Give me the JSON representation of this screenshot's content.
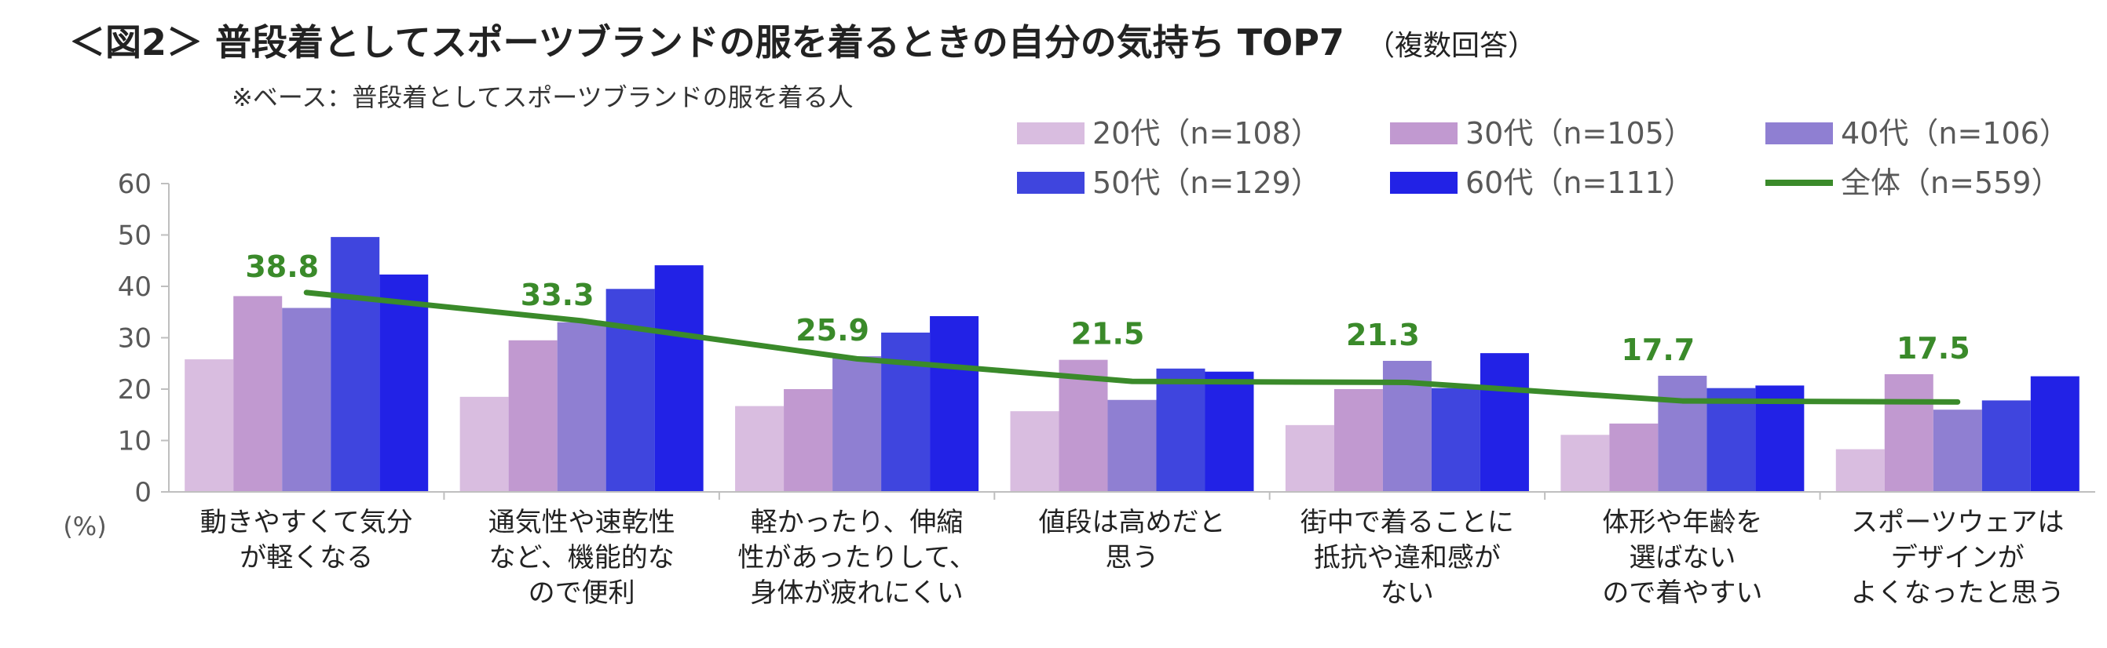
{
  "chart_data": {
    "type": "bar",
    "title": "＜図2＞ 普段着としてスポーツブランドの服を着るときの自分の気持ち TOP7",
    "title_note": "（複数回答）",
    "subtitle": "※ベース：普段着としてスポーツブランドの服を着る人",
    "ylabel": "(%)",
    "ylim": [
      0,
      60
    ],
    "yticks": [
      "0",
      "10",
      "20",
      "30",
      "40",
      "50",
      "60"
    ],
    "grid": false,
    "legend_position": "top-right",
    "categories": [
      [
        "動きやすくて気分",
        "が軽くなる"
      ],
      [
        "通気性や速乾性",
        "など、機能的な",
        "ので便利"
      ],
      [
        "軽かったり、伸縮",
        "性があったりして、",
        "身体が疲れにくい"
      ],
      [
        "値段は高めだと",
        "思う"
      ],
      [
        "街中で着ることに",
        "抵抗や違和感が",
        "ない"
      ],
      [
        "体形や年齢を",
        "選ばない",
        "ので着やすい"
      ],
      [
        "スポーツウェアは",
        "デザインが",
        "よくなったと思う"
      ]
    ],
    "series": [
      {
        "name": "20代（n=108）",
        "color": "#d9bde0",
        "values": [
          25.8,
          18.5,
          16.7,
          15.7,
          13.0,
          11.1,
          8.3
        ]
      },
      {
        "name": "30代（n=105）",
        "color": "#c199d0",
        "values": [
          38.1,
          29.5,
          20.0,
          25.7,
          20.0,
          13.3,
          22.9
        ]
      },
      {
        "name": "40代（n=106）",
        "color": "#8f7fd2",
        "values": [
          35.8,
          33.0,
          26.4,
          17.9,
          25.5,
          22.6,
          16.0
        ]
      },
      {
        "name": "50代（n=129）",
        "color": "#3f45de",
        "values": [
          49.6,
          39.5,
          31.0,
          24.0,
          20.2,
          20.2,
          17.8
        ]
      },
      {
        "name": "60代（n=111）",
        "color": "#2222e6",
        "values": [
          42.3,
          44.1,
          34.2,
          23.4,
          27.0,
          20.7,
          22.5
        ]
      }
    ],
    "line_series": {
      "name": "全体（n=559）",
      "color": "#3a8a2a",
      "values": [
        38.8,
        33.3,
        25.9,
        21.5,
        21.3,
        17.7,
        17.5
      ],
      "labels": [
        "38.8",
        "33.3",
        "25.9",
        "21.5",
        "21.3",
        "17.7",
        "17.5"
      ]
    }
  }
}
